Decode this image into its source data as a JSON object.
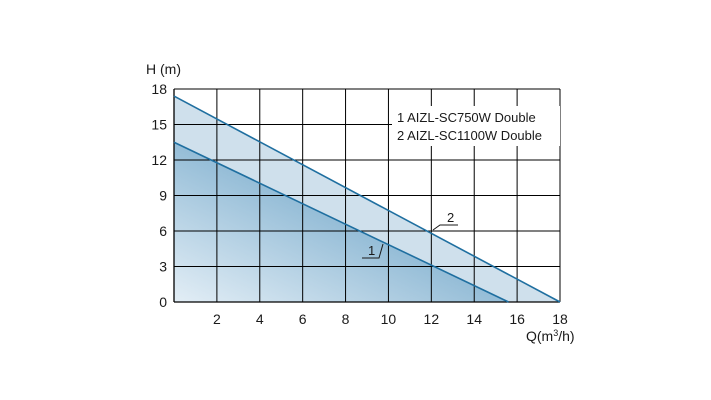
{
  "chart_data": {
    "type": "area",
    "title": "",
    "ylabel": "H (m)",
    "xlabel_main": "Q(m",
    "xlabel_sup": "3",
    "xlabel_end": "/h)",
    "xlim": [
      0,
      18
    ],
    "ylim": [
      0,
      18
    ],
    "xticks": [
      2,
      4,
      6,
      8,
      10,
      12,
      14,
      16,
      18
    ],
    "yticks": [
      0,
      3,
      6,
      9,
      12,
      15,
      18
    ],
    "grid": true,
    "legend_position": "top-right",
    "legend": [
      "1 AIZL-SC750W Double",
      "2 AIZL-SC1100W Double"
    ],
    "series": [
      {
        "label": "1",
        "x": [
          0,
          15.6
        ],
        "y": [
          13.5,
          0
        ]
      },
      {
        "label": "2",
        "x": [
          0,
          18
        ],
        "y": [
          17.4,
          0
        ]
      }
    ],
    "colors": {
      "fill_light": "#cfe0ec",
      "fill_dark": "#6ea3c6",
      "line": "#1f6fa0",
      "grid": "#000000"
    }
  }
}
